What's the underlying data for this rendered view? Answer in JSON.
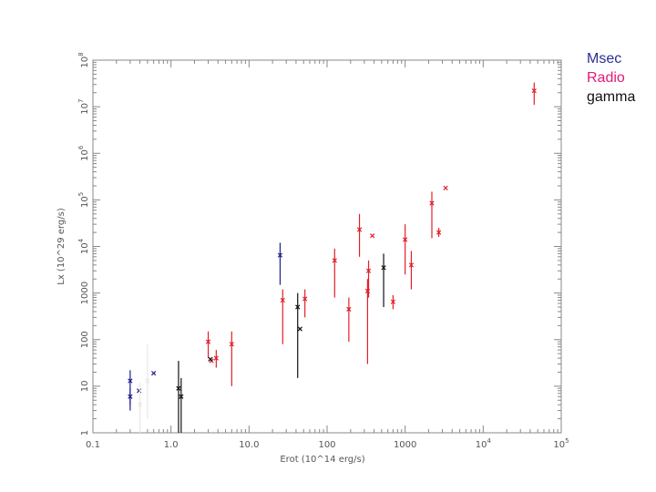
{
  "chart_data": {
    "type": "scatter",
    "xlabel": "Erot (10^14 erg/s)",
    "ylabel": "Lx (10^29 erg/s)",
    "x_scale": "log",
    "y_scale": "log",
    "xlim": [
      0.1,
      100000
    ],
    "ylim": [
      1,
      100000000
    ],
    "x_ticks": [
      {
        "value": 0.1,
        "label": "0.1"
      },
      {
        "value": 1,
        "label": "1.0"
      },
      {
        "value": 10,
        "label": "10.0"
      },
      {
        "value": 100,
        "label": "100"
      },
      {
        "value": 1000,
        "label": "1000"
      },
      {
        "value": 10000,
        "label": "10",
        "sup": "4"
      },
      {
        "value": 100000,
        "label": "10",
        "sup": "5"
      }
    ],
    "y_ticks": [
      {
        "value": 1,
        "label": "1"
      },
      {
        "value": 10,
        "label": "10"
      },
      {
        "value": 100,
        "label": "100"
      },
      {
        "value": 1000,
        "label": "1000"
      },
      {
        "value": 10000,
        "label": "10",
        "sup": "4"
      },
      {
        "value": 100000,
        "label": "10",
        "sup": "5"
      },
      {
        "value": 1000000,
        "label": "10",
        "sup": "6"
      },
      {
        "value": 10000000,
        "label": "10",
        "sup": "7"
      },
      {
        "value": 100000000,
        "label": "10",
        "sup": "8"
      }
    ],
    "grid": false,
    "legend": "outside-right",
    "series": [
      {
        "name": "Msec",
        "color": "#1f1f8f",
        "points": [
          {
            "x": 0.3,
            "y": 13,
            "ylo": 4,
            "yhi": 22
          },
          {
            "x": 0.3,
            "y": 6,
            "ylo": 3,
            "yhi": 9
          },
          {
            "x": 0.39,
            "y": 8,
            "ylo": 8,
            "yhi": 8
          },
          {
            "x": 0.6,
            "y": 19,
            "ylo": 19,
            "yhi": 19
          },
          {
            "x": 25,
            "y": 6500,
            "ylo": 1500,
            "yhi": 12000
          }
        ]
      },
      {
        "name": "Radio",
        "color": "#e0202a",
        "points": [
          {
            "x": 3,
            "y": 90,
            "ylo": 40,
            "yhi": 150
          },
          {
            "x": 3.3,
            "y": 35,
            "ylo": 35,
            "yhi": 35
          },
          {
            "x": 3.8,
            "y": 40,
            "ylo": 25,
            "yhi": 60
          },
          {
            "x": 6,
            "y": 80,
            "ylo": 10,
            "yhi": 150
          },
          {
            "x": 27,
            "y": 700,
            "ylo": 80,
            "yhi": 1200
          },
          {
            "x": 52,
            "y": 750,
            "ylo": 300,
            "yhi": 1200
          },
          {
            "x": 125,
            "y": 5000,
            "ylo": 800,
            "yhi": 9000
          },
          {
            "x": 190,
            "y": 450,
            "ylo": 90,
            "yhi": 800
          },
          {
            "x": 260,
            "y": 23000,
            "ylo": 6000,
            "yhi": 50000
          },
          {
            "x": 330,
            "y": 1100,
            "ylo": 30,
            "yhi": 2000
          },
          {
            "x": 340,
            "y": 3000,
            "ylo": 800,
            "yhi": 5000
          },
          {
            "x": 380,
            "y": 17000,
            "ylo": 17000,
            "yhi": 17000
          },
          {
            "x": 700,
            "y": 650,
            "ylo": 450,
            "yhi": 900
          },
          {
            "x": 1000,
            "y": 14000,
            "ylo": 2500,
            "yhi": 30000
          },
          {
            "x": 1200,
            "y": 4000,
            "ylo": 1200,
            "yhi": 8000
          },
          {
            "x": 2200,
            "y": 85000,
            "ylo": 15000,
            "yhi": 150000
          },
          {
            "x": 2700,
            "y": 20000,
            "ylo": 16000,
            "yhi": 25000
          },
          {
            "x": 3300,
            "y": 180000,
            "ylo": 180000,
            "yhi": 180000
          },
          {
            "x": 45000,
            "y": 22000000,
            "ylo": 11000000,
            "yhi": 33000000
          }
        ]
      },
      {
        "name": "gamma",
        "color": "#111111",
        "points": [
          {
            "x": 1.25,
            "y": 9,
            "ylo": 1,
            "yhi": 35
          },
          {
            "x": 1.35,
            "y": 6,
            "ylo": 1,
            "yhi": 15
          },
          {
            "x": 3.2,
            "y": 38,
            "ylo": 38,
            "yhi": 38
          },
          {
            "x": 42,
            "y": 500,
            "ylo": 15,
            "yhi": 1000
          },
          {
            "x": 45,
            "y": 170,
            "ylo": 170,
            "yhi": 170
          },
          {
            "x": 530,
            "y": 3500,
            "ylo": 500,
            "yhi": 7000
          }
        ]
      },
      {
        "name": "",
        "color": "#e8e8e8",
        "points": [
          {
            "x": 0.5,
            "y": 13,
            "ylo": 2,
            "yhi": 80
          },
          {
            "x": 0.4,
            "y": 4,
            "ylo": 1,
            "yhi": 12
          }
        ]
      }
    ]
  },
  "legend": {
    "items": [
      {
        "label": "Msec",
        "color": "#2a2f8f"
      },
      {
        "label": "Radio",
        "color": "#e0197a"
      },
      {
        "label": "gamma",
        "color": "#111111"
      }
    ]
  }
}
